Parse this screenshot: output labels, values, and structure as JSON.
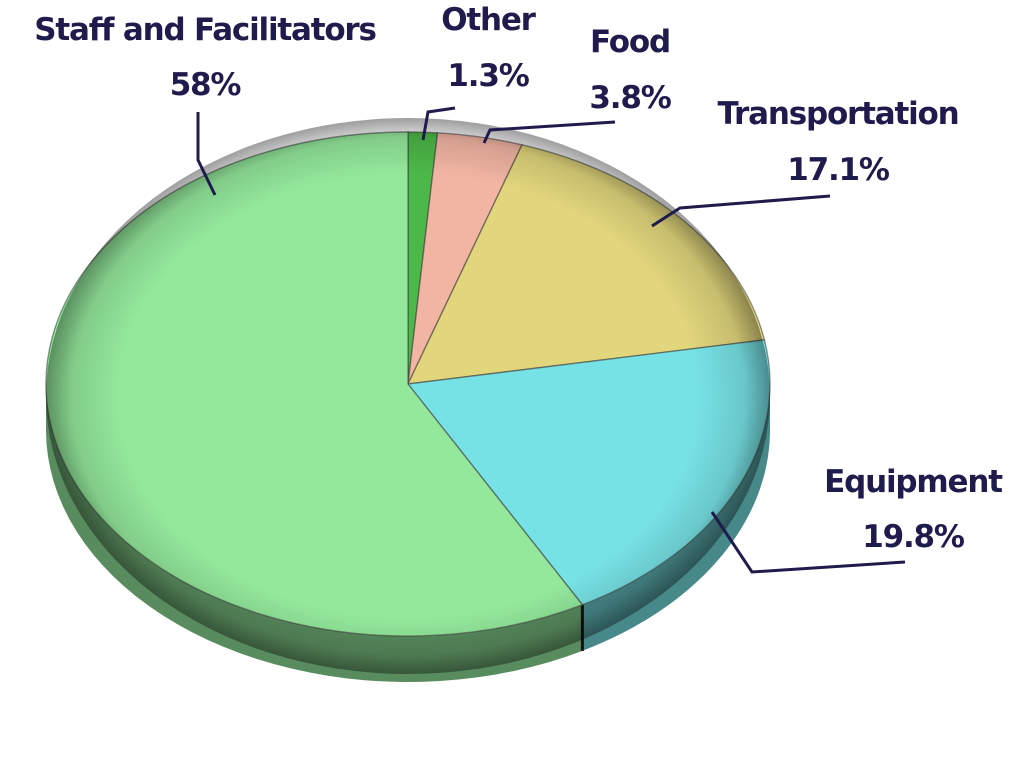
{
  "chart_data": {
    "type": "pie",
    "title": "",
    "slices": [
      {
        "name": "Staff and Facilitators",
        "value": 58,
        "label": "58%",
        "color": "#93e89b"
      },
      {
        "name": "Other",
        "value": 1.3,
        "label": "1.3%",
        "color": "#4cb848"
      },
      {
        "name": "Food",
        "value": 3.8,
        "label": "3.8%",
        "color": "#f2b5a3"
      },
      {
        "name": "Transportation",
        "value": 17.1,
        "label": "17.1%",
        "color": "#e1d67c"
      },
      {
        "name": "Equipment",
        "value": 19.8,
        "label": "19.8%",
        "color": "#77e2e5"
      }
    ],
    "start_slice": "Other",
    "direction": "clockwise",
    "style": "3d-tilted",
    "legend": "none",
    "label_color": "#1f1b4d"
  }
}
